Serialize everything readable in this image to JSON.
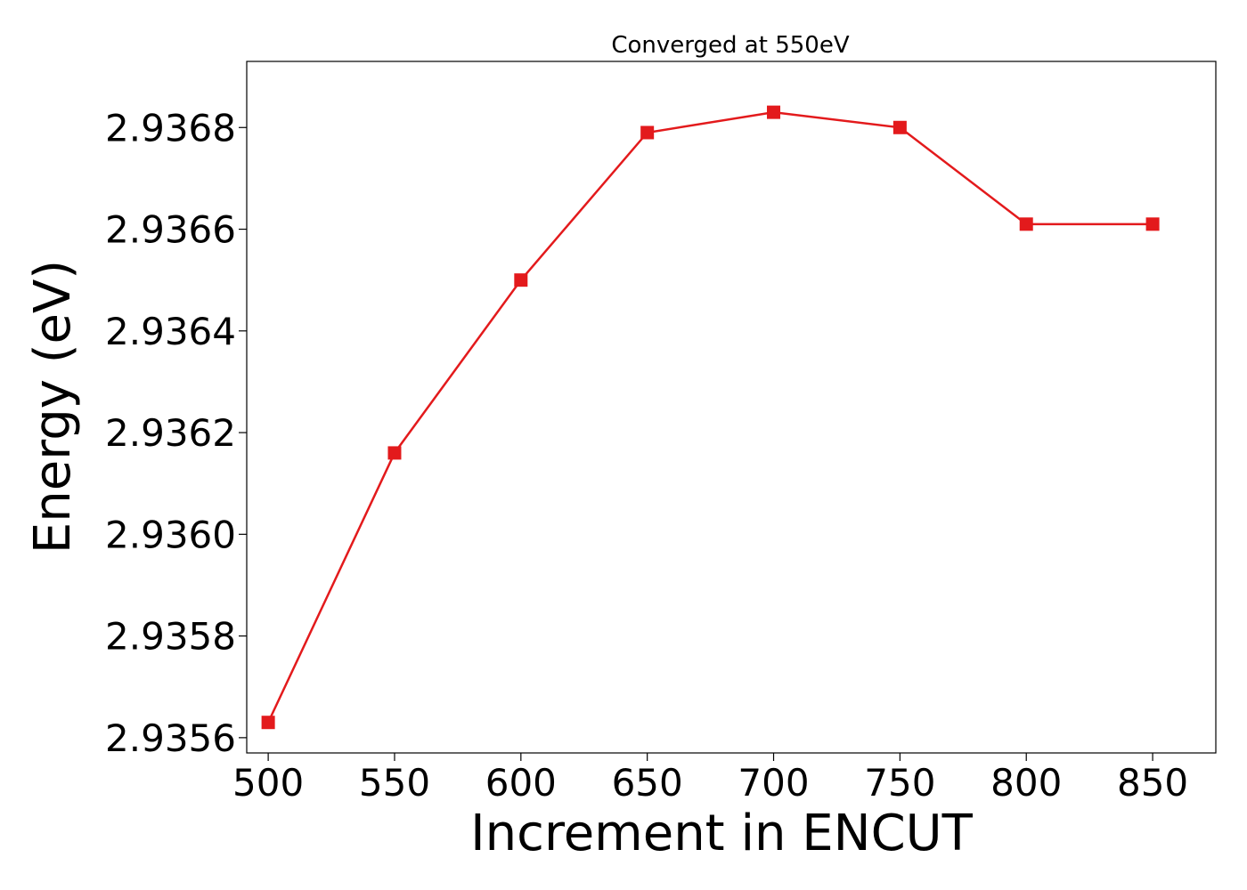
{
  "chart_data": {
    "type": "line",
    "title": "Converged at 550eV",
    "xlabel": "Increment in ENCUT",
    "ylabel": "Energy (eV)",
    "xlim": [
      491.5,
      875
    ],
    "ylim": [
      2.93557,
      2.93693
    ],
    "xticks": [
      500,
      550,
      600,
      650,
      700,
      750,
      800,
      850
    ],
    "yticks": [
      2.9356,
      2.9358,
      2.936,
      2.9362,
      2.9364,
      2.9366,
      2.9368
    ],
    "ytick_labels": [
      "2.9356",
      "2.9358",
      "2.9360",
      "2.9362",
      "2.9364",
      "2.9366",
      "2.9368"
    ],
    "grid": false,
    "series": [
      {
        "color": "#e31a1c",
        "marker": "square",
        "x": [
          500,
          550,
          600,
          650,
          700,
          750,
          800,
          850
        ],
        "y": [
          2.93563,
          2.93616,
          2.9365,
          2.93679,
          2.93683,
          2.9368,
          2.93661,
          2.93661
        ]
      }
    ]
  }
}
